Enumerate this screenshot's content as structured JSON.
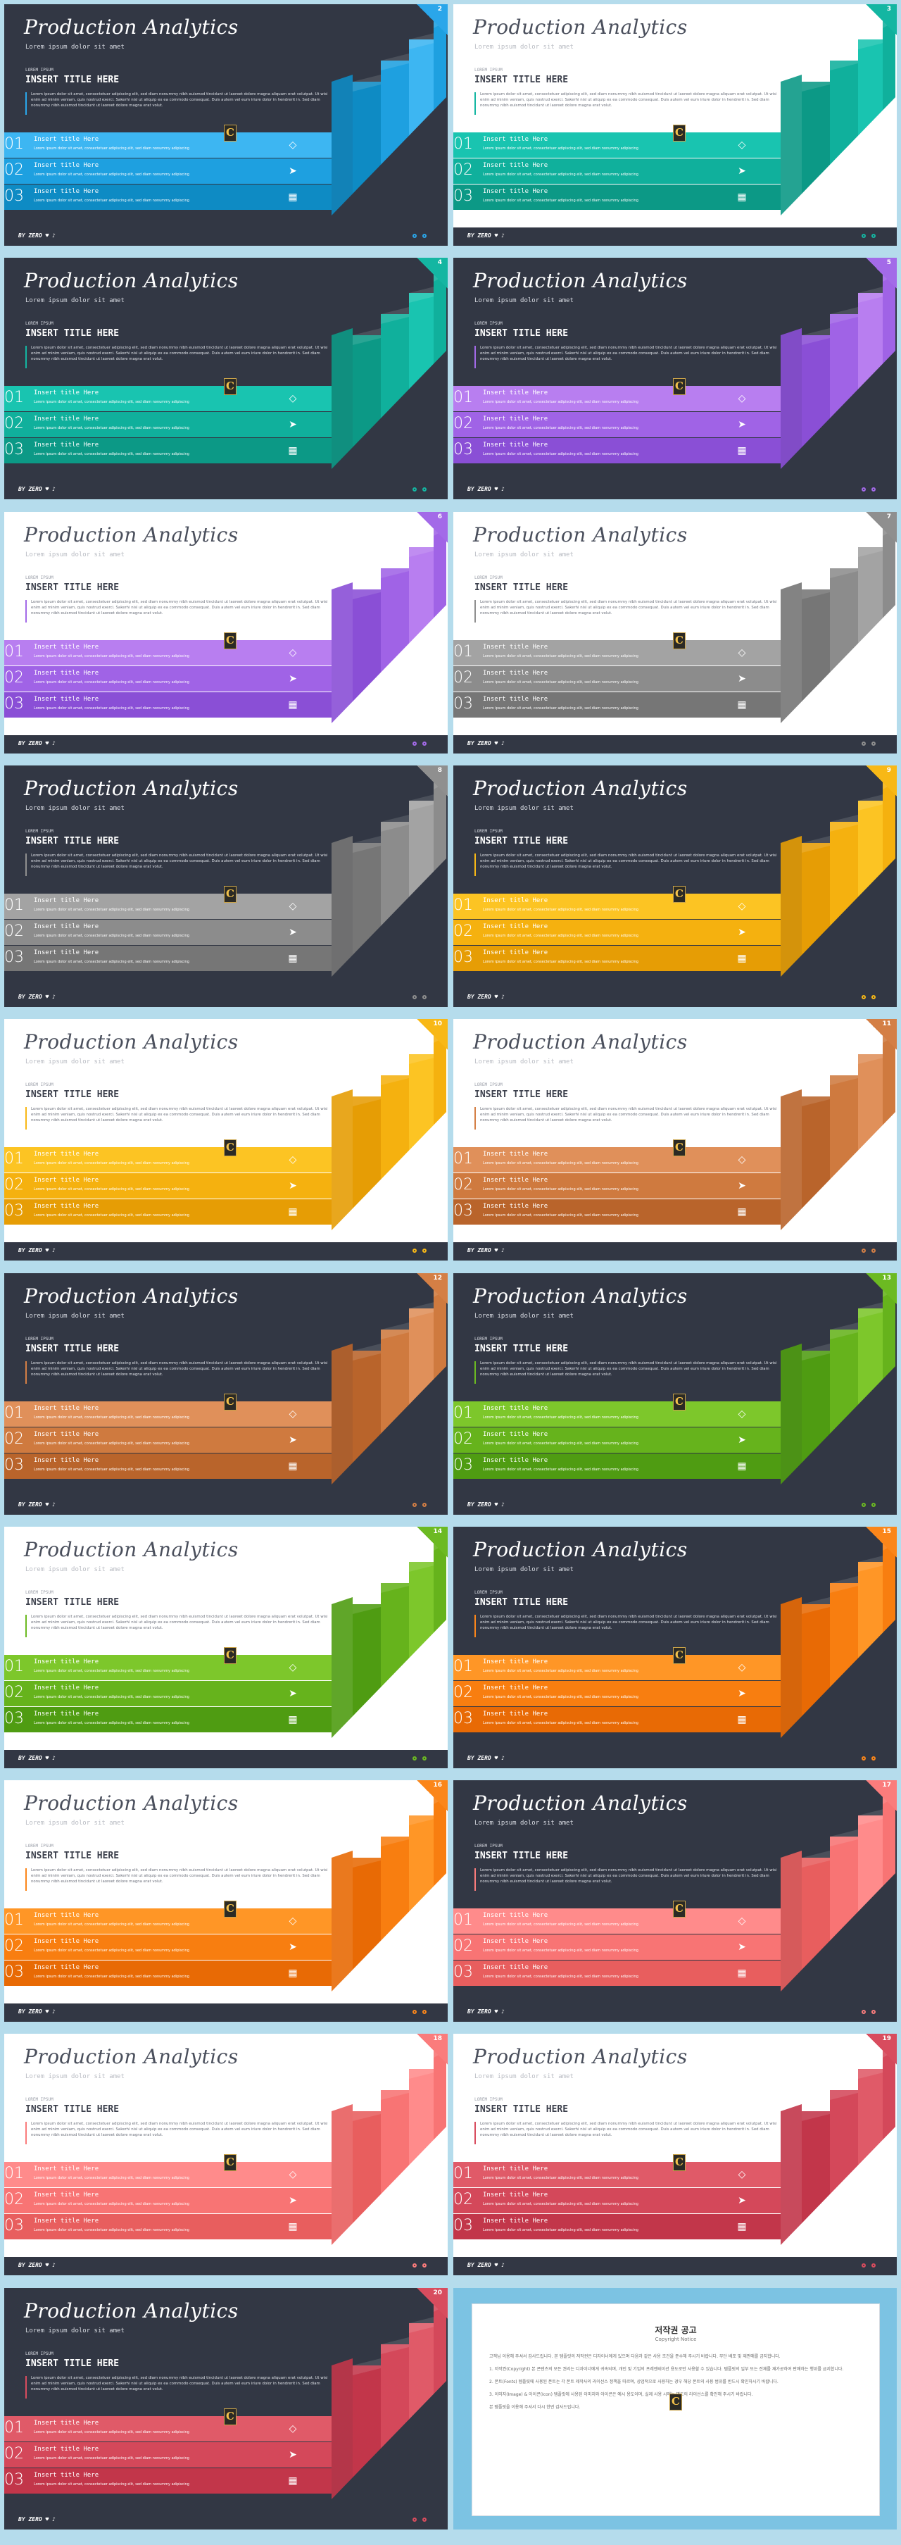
{
  "title": "Production Analytics",
  "subtitle": "Lorem ipsum dolor sit amet",
  "label_small": "LOREM IPSUM",
  "heading": "INSERT TITLE HERE",
  "body": "Lorem ipsum dolor sit amet, consectetuer adipiscing elit, sed diam nonummy nibh euismod tincidunt ut laoreet dolore magna aliquam erat volutpat. Ut wisi enim ad minim veniam, quis nostrud exerci. Sakerhi nisl ut aliquip ex ea commodo consequat. Duis autem vel eum iriure dolor in hendrerit in. Sed diam nonummy nibh euismod tincidunt ut laoreet dolore magna erat volut.",
  "item_title": "Insert title Here",
  "item_body": "Lorem ipsum dolor sit amet, consectetuer adipiscing elit, sed diam nonummy adipiscing",
  "numbers": [
    "01",
    "02",
    "03"
  ],
  "footer_brand": "BY ZERO ♥ ♪",
  "logo_glyph": "C",
  "band_icons": [
    "diamond-icon",
    "paper-plane-icon",
    "shop-icon"
  ],
  "slides": [
    {
      "page": "2",
      "theme": "dark",
      "c1": "#3db6f2",
      "c2": "#1ea0e0",
      "c3": "#0e8bc4",
      "accent": "#2aa6ea"
    },
    {
      "page": "3",
      "theme": "light",
      "c1": "#19c4b0",
      "c2": "#10b09c",
      "c3": "#0c9986",
      "accent": "#14b6a2"
    },
    {
      "page": "4",
      "theme": "dark",
      "c1": "#19c4b0",
      "c2": "#10b09c",
      "c3": "#0c9986",
      "accent": "#14b6a2"
    },
    {
      "page": "5",
      "theme": "dark",
      "c1": "#b87ef0",
      "c2": "#a063e6",
      "c3": "#8a4fd6",
      "accent": "#a36ae8"
    },
    {
      "page": "6",
      "theme": "light",
      "c1": "#b87ef0",
      "c2": "#a063e6",
      "c3": "#8a4fd6",
      "accent": "#a36ae8"
    },
    {
      "page": "7",
      "theme": "light",
      "c1": "#a3a3a3",
      "c2": "#8c8c8c",
      "c3": "#767676",
      "accent": "#8f8f8f"
    },
    {
      "page": "8",
      "theme": "dark",
      "c1": "#a3a3a3",
      "c2": "#8c8c8c",
      "c3": "#767676",
      "accent": "#8f8f8f"
    },
    {
      "page": "9",
      "theme": "dark",
      "c1": "#fcc423",
      "c2": "#f5b10f",
      "c3": "#e69d05",
      "accent": "#f8b816"
    },
    {
      "page": "10",
      "theme": "light",
      "c1": "#fcc423",
      "c2": "#f5b10f",
      "c3": "#e69d05",
      "accent": "#f8b816"
    },
    {
      "page": "11",
      "theme": "light",
      "c1": "#e0905a",
      "c2": "#cf7a3f",
      "c3": "#b9642b",
      "accent": "#d47f45"
    },
    {
      "page": "12",
      "theme": "dark",
      "c1": "#e0905a",
      "c2": "#cf7a3f",
      "c3": "#b9642b",
      "accent": "#d47f45"
    },
    {
      "page": "13",
      "theme": "dark",
      "c1": "#7dc72b",
      "c2": "#66b31c",
      "c3": "#4f9c12",
      "accent": "#6cba22"
    },
    {
      "page": "14",
      "theme": "light",
      "c1": "#7dc72b",
      "c2": "#66b31c",
      "c3": "#4f9c12",
      "accent": "#6cba22"
    },
    {
      "page": "15",
      "theme": "dark",
      "c1": "#ff9626",
      "c2": "#f87e10",
      "c3": "#e86a05",
      "accent": "#fb861a"
    },
    {
      "page": "16",
      "theme": "light",
      "c1": "#ff9626",
      "c2": "#f87e10",
      "c3": "#e86a05",
      "accent": "#fb861a"
    },
    {
      "page": "17",
      "theme": "dark",
      "c1": "#ff8b8b",
      "c2": "#f87474",
      "c3": "#e85e5e",
      "accent": "#fa7c7c"
    },
    {
      "page": "18",
      "theme": "light",
      "c1": "#ff8b8b",
      "c2": "#f87474",
      "c3": "#e85e5e",
      "accent": "#fa7c7c"
    },
    {
      "page": "19",
      "theme": "light",
      "c1": "#e05a68",
      "c2": "#d4485a",
      "c3": "#c2364a",
      "accent": "#d84c5e"
    },
    {
      "page": "20",
      "theme": "dark",
      "c1": "#e05a68",
      "c2": "#d4485a",
      "c3": "#c2364a",
      "accent": "#d84c5e"
    }
  ],
  "copyright": {
    "title": "저작권 공고",
    "subtitle": "Copyright Notice",
    "paragraphs": [
      "고객님 이용해 주셔서 감사드립니다. 본 템플릿의 저작권은 디자이너에게 있으며 다음과 같은 사용 조건을 준수해 주시기 바랍니다. 무단 배포 및 재판매를 금지합니다.",
      "1. 저작권(Copyright) 본 콘텐츠의 모든 권리는 디자이너에게 귀속되며, 개인 및 기업의 프레젠테이션 용도로만 사용할 수 있습니다. 템플릿의 일부 또는 전체를 재가공하여 판매하는 행위를 금지합니다.",
      "2. 폰트(Fonts) 템플릿에 사용된 폰트는 각 폰트 제작사의 라이선스 정책을 따르며, 상업적으로 사용하는 경우 해당 폰트의 사용 범위를 반드시 확인하시기 바랍니다.",
      "3. 이미지(Image) & 아이콘(Icon) 템플릿에 사용된 이미지와 아이콘은 예시 용도이며, 실제 사용 시에는 별도의 라이선스를 확인해 주시기 바랍니다.",
      "본 템플릿을 이용해 주셔서 다시 한번 감사드립니다."
    ]
  }
}
